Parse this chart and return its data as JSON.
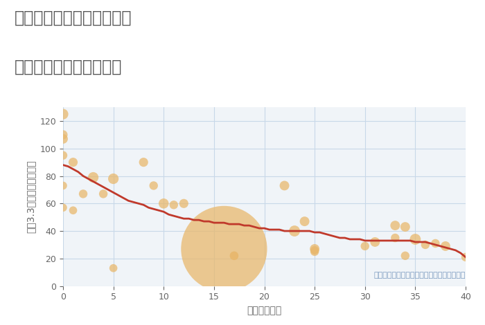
{
  "title_line1": "三重県桑名市多度町古野の",
  "title_line2": "築年数別中古戸建て価格",
  "xlabel": "築年数（年）",
  "ylabel": "坪（3.3㎡）単価（万円）",
  "annotation": "円の大きさは、取引のあった物件面積を示す",
  "scatter_x": [
    0,
    0,
    0,
    0,
    0,
    0,
    1,
    1,
    2,
    3,
    4,
    5,
    5,
    8,
    9,
    10,
    11,
    12,
    16,
    17,
    17,
    22,
    23,
    24,
    25,
    25,
    25,
    30,
    31,
    33,
    33,
    34,
    34,
    35,
    36,
    37,
    38,
    40
  ],
  "scatter_y": [
    125,
    110,
    107,
    95,
    73,
    57,
    90,
    55,
    67,
    79,
    67,
    78,
    13,
    90,
    73,
    60,
    59,
    60,
    27,
    22,
    22,
    73,
    40,
    47,
    27,
    26,
    25,
    29,
    32,
    44,
    35,
    22,
    43,
    34,
    30,
    31,
    29,
    21
  ],
  "scatter_size": [
    120,
    90,
    100,
    80,
    70,
    70,
    90,
    70,
    80,
    120,
    80,
    120,
    70,
    90,
    80,
    110,
    80,
    90,
    8000,
    80,
    80,
    100,
    130,
    100,
    100,
    80,
    80,
    80,
    100,
    100,
    80,
    80,
    100,
    130,
    80,
    80,
    100,
    80
  ],
  "scatter_color": "#E8B86D",
  "scatter_alpha": 0.75,
  "line_x": [
    0,
    0.5,
    1,
    1.5,
    2,
    2.5,
    3,
    3.5,
    4,
    4.5,
    5,
    5.5,
    6,
    6.5,
    7,
    7.5,
    8,
    8.5,
    9,
    9.5,
    10,
    10.5,
    11,
    11.5,
    12,
    12.5,
    13,
    13.5,
    14,
    14.5,
    15,
    15.5,
    16,
    16.5,
    17,
    17.5,
    18,
    18.5,
    19,
    19.5,
    20,
    20.5,
    21,
    21.5,
    22,
    22.5,
    23,
    23.5,
    24,
    24.5,
    25,
    25.5,
    26,
    26.5,
    27,
    27.5,
    28,
    28.5,
    29,
    29.5,
    30,
    30.5,
    31,
    31.5,
    32,
    32.5,
    33,
    33.5,
    34,
    34.5,
    35,
    35.5,
    36,
    36.5,
    37,
    37.5,
    38,
    38.5,
    39,
    39.5,
    40
  ],
  "line_y": [
    88,
    87,
    85,
    83,
    80,
    78,
    76,
    74,
    72,
    70,
    68,
    66,
    64,
    62,
    61,
    60,
    59,
    57,
    56,
    55,
    54,
    52,
    51,
    50,
    49,
    49,
    48,
    48,
    47,
    47,
    46,
    46,
    46,
    45,
    45,
    45,
    44,
    44,
    43,
    42,
    42,
    41,
    41,
    41,
    40,
    40,
    40,
    40,
    40,
    40,
    39,
    39,
    38,
    37,
    36,
    35,
    35,
    34,
    34,
    34,
    33,
    33,
    33,
    33,
    33,
    33,
    33,
    33,
    33,
    33,
    32,
    32,
    32,
    31,
    30,
    29,
    28,
    27,
    26,
    24,
    21
  ],
  "line_color": "#C0392B",
  "line_width": 2.0,
  "xlim": [
    0,
    40
  ],
  "ylim": [
    0,
    130
  ],
  "yticks": [
    0,
    20,
    40,
    60,
    80,
    100,
    120
  ],
  "xticks": [
    0,
    5,
    10,
    15,
    20,
    25,
    30,
    35,
    40
  ],
  "grid_color": "#c8d8e8",
  "bg_color": "#f0f4f8",
  "title_color": "#555555",
  "axis_label_color": "#666666",
  "tick_color": "#666666",
  "annotation_color": "#7a9abf",
  "title_fontsize": 17,
  "label_fontsize": 10,
  "tick_fontsize": 9,
  "annotation_fontsize": 8
}
